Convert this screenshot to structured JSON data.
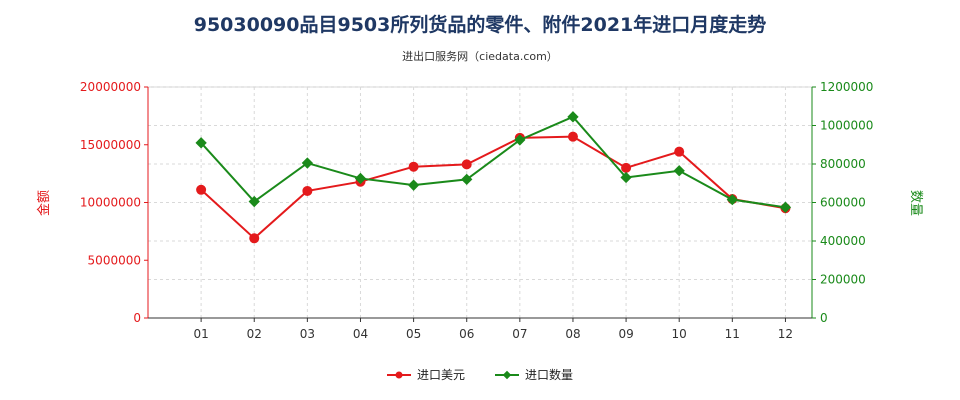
{
  "header": {
    "title": "95030090品目9503所列货品的零件、附件2021年进口月度走势",
    "subtitle": "进出口服务网（ciedata.com）"
  },
  "chart_data": {
    "type": "line",
    "title": "95030090品目9503所列货品的零件、附件2021年进口月度走势",
    "subtitle": "进出口服务网（ciedata.com）",
    "categories": [
      "01",
      "02",
      "03",
      "04",
      "05",
      "06",
      "07",
      "08",
      "09",
      "10",
      "11",
      "12"
    ],
    "ylabel_left": "金额",
    "ylabel_right": "数量",
    "ylim_left": [
      0,
      20000000
    ],
    "ylim_right": [
      0,
      1200000
    ],
    "yticks_left": [
      "0",
      "5000000",
      "10000000",
      "15000000",
      "20000000"
    ],
    "yticks_right": [
      "0",
      "200000",
      "400000",
      "600000",
      "800000",
      "1000000",
      "1200000"
    ],
    "grid": true,
    "legend_position": "bottom",
    "series": [
      {
        "name": "进口美元",
        "axis": "left",
        "color": "#e41a1c",
        "values": [
          11100000,
          6900000,
          11000000,
          11800000,
          13100000,
          13300000,
          15600000,
          15700000,
          13000000,
          14400000,
          10300000,
          9500000
        ]
      },
      {
        "name": "进口数量",
        "axis": "right",
        "color": "#1a8a1a",
        "values": [
          910000,
          605000,
          805000,
          725000,
          690000,
          720000,
          925000,
          1045000,
          730000,
          765000,
          615000,
          575000
        ]
      }
    ],
    "axis_colors": {
      "left": "#e41a1c",
      "right": "#1a8a1a"
    }
  }
}
